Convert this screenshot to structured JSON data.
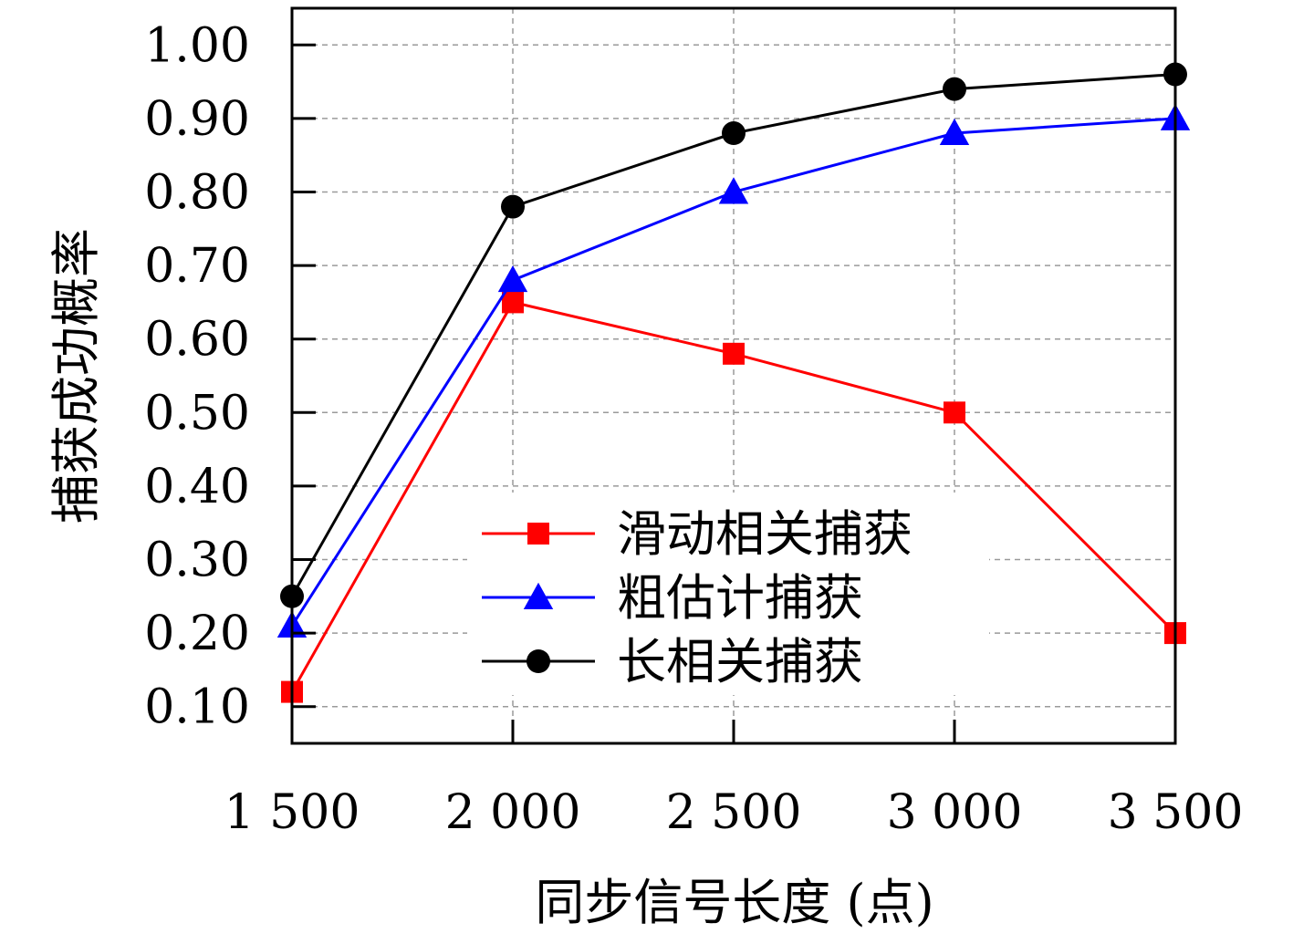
{
  "chart_data": {
    "type": "line",
    "title": "",
    "xlabel": "同步信号长度 (点)",
    "ylabel": "捕获成功概率",
    "x": [
      1500,
      2000,
      2500,
      3000,
      3500
    ],
    "x_tick_labels": [
      "1 500",
      "2 000",
      "2 500",
      "3 000",
      "3 500"
    ],
    "y_tick_labels": [
      "0.10",
      "0.20",
      "0.30",
      "0.40",
      "0.50",
      "0.60",
      "0.70",
      "0.80",
      "0.90",
      "1.00"
    ],
    "xlim": [
      1500,
      3500
    ],
    "ylim": [
      0.05,
      1.05
    ],
    "grid": true,
    "legend_position": "lower-right",
    "series": [
      {
        "name": "滑动相关捕获",
        "color": "#ff0000",
        "marker": "square",
        "values": [
          0.12,
          0.65,
          0.58,
          0.5,
          0.2
        ]
      },
      {
        "name": "粗估计捕获",
        "color": "#0000ff",
        "marker": "triangle",
        "values": [
          0.21,
          0.68,
          0.8,
          0.88,
          0.9
        ]
      },
      {
        "name": "长相关捕获",
        "color": "#000000",
        "marker": "circle",
        "values": [
          0.25,
          0.78,
          0.88,
          0.94,
          0.96
        ]
      }
    ]
  }
}
